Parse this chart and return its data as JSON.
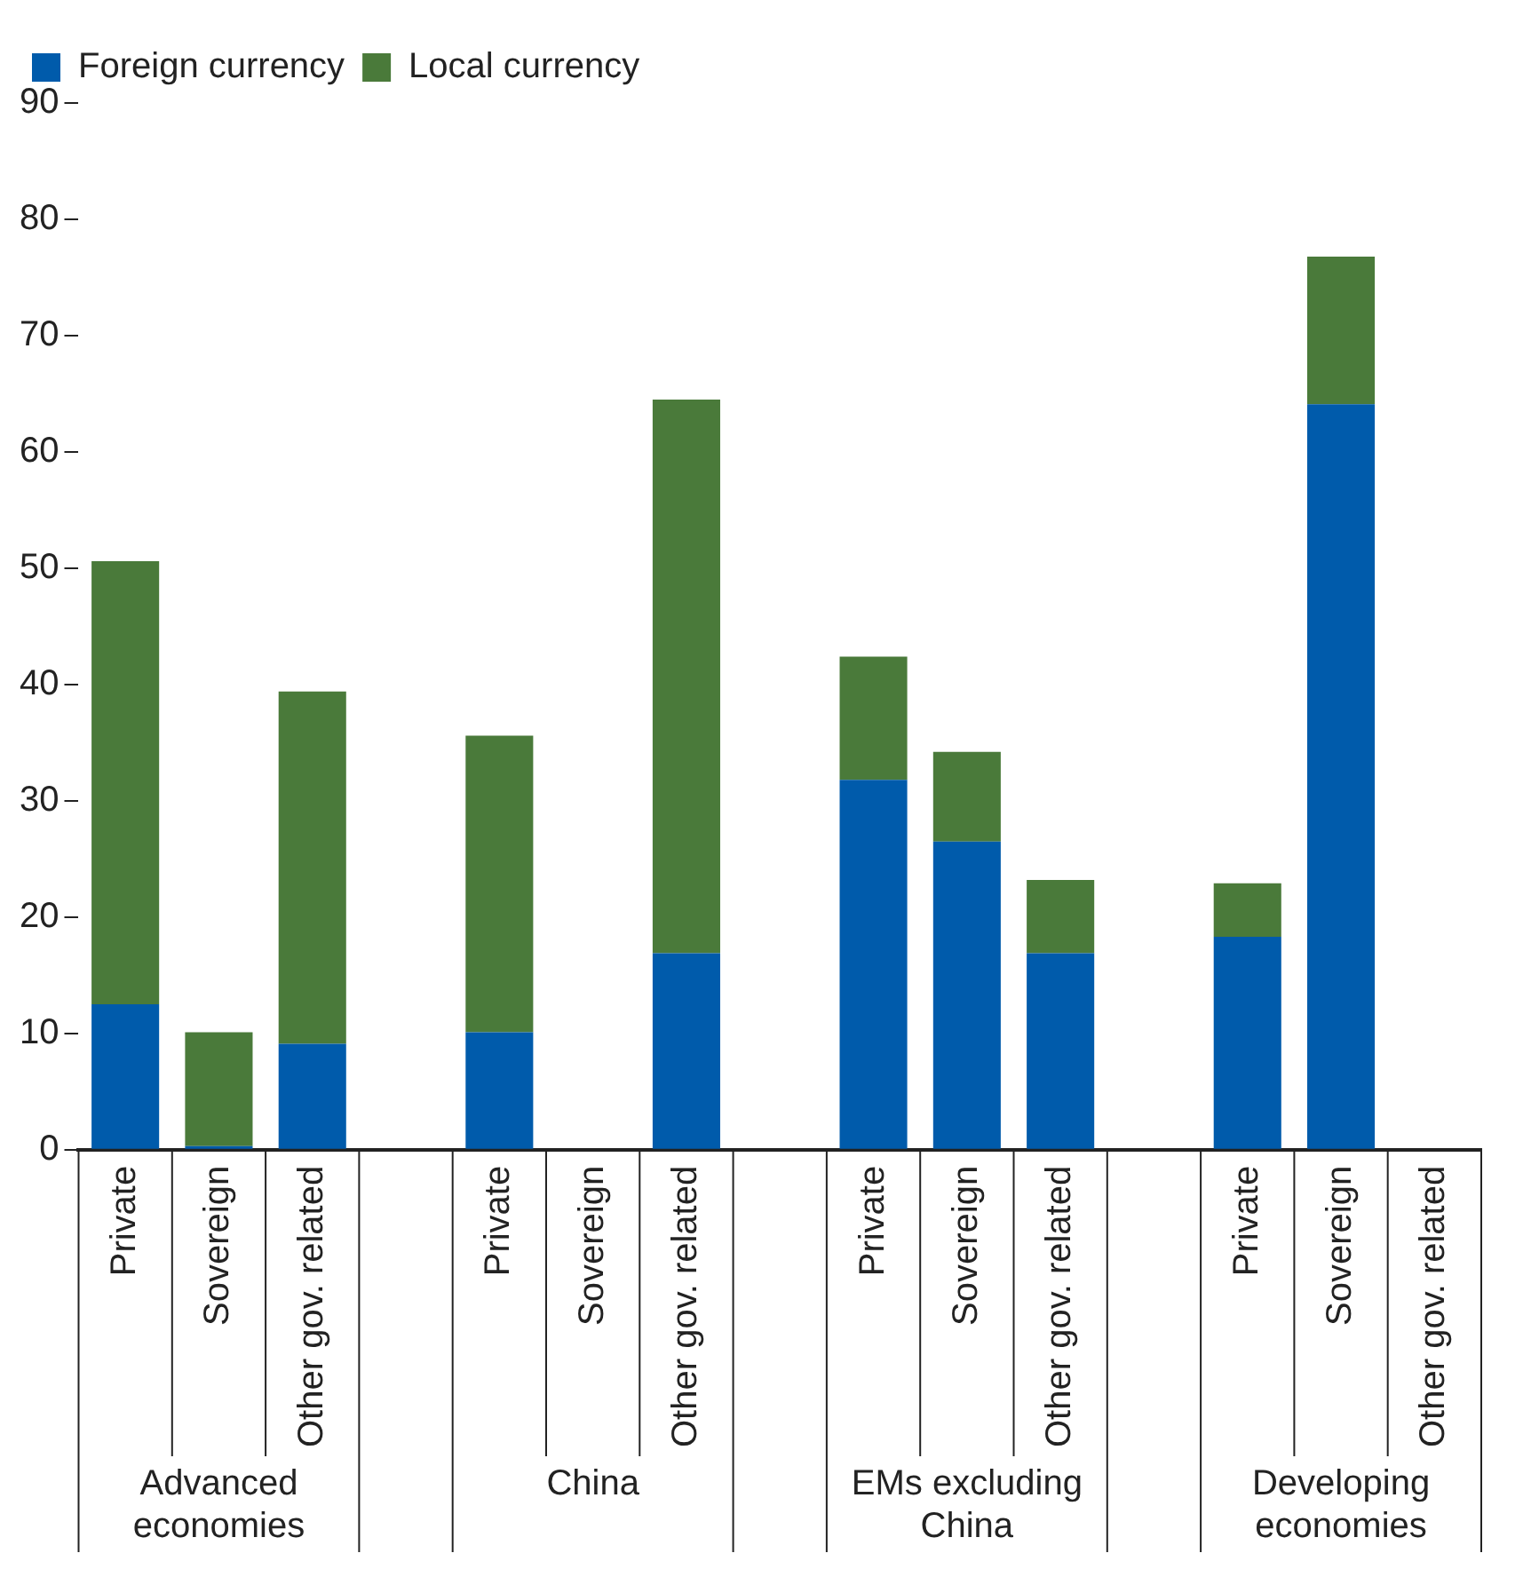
{
  "chart_data": {
    "type": "bar",
    "stacked": true,
    "categories": [
      "Private",
      "Sovereign",
      "Other gov. related",
      null,
      "Private",
      "Sovereign",
      "Other gov. related",
      null,
      "Private",
      "Sovereign",
      "Other gov. related",
      null,
      "Private",
      "Sovereign",
      "Other gov. related"
    ],
    "series": [
      {
        "name": "Foreign currency",
        "color": "#005bab",
        "values": [
          12.5,
          0.3,
          9.1,
          null,
          10.1,
          0,
          16.9,
          null,
          31.8,
          26.5,
          16.9,
          null,
          18.3,
          64.1,
          0
        ]
      },
      {
        "name": "Local currency",
        "color": "#4a7a3a",
        "values": [
          38.1,
          9.8,
          30.3,
          null,
          25.5,
          0,
          47.6,
          null,
          10.6,
          7.7,
          6.3,
          null,
          4.6,
          12.7,
          0
        ]
      }
    ],
    "ylim": [
      0,
      90
    ],
    "yticks": [
      0,
      10,
      20,
      30,
      40,
      50,
      60,
      70,
      80,
      90
    ],
    "legend": "top left",
    "annotations": [
      "Advanced economies",
      "China",
      "EMs excluding China",
      "Developing economies"
    ]
  }
}
